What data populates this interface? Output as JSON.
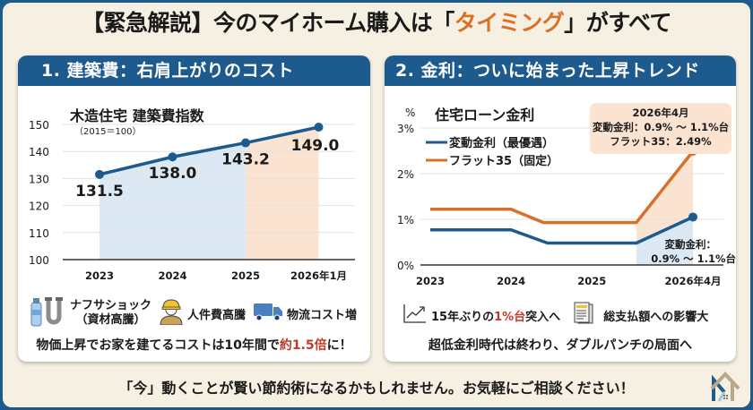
{
  "title": {
    "prefix": "【緊急解説】今のマイホーム購入は「",
    "accent": "タイミング",
    "suffix": "」がすべて"
  },
  "colors": {
    "brand_blue": "#1d5a8e",
    "accent_orange": "#d9702a",
    "highlight_red": "#c0392b",
    "background_cream": "#f5f0e2",
    "blue_fill": "#dce8f4",
    "orange_fill": "#fbe3d2"
  },
  "left_panel": {
    "header": "1. 建築費：右肩上がりのコスト",
    "factors": [
      {
        "icon": "water-bottle-and-pipe-icon",
        "label_line1": "ナフサショック",
        "label_line2": "（資材高騰）"
      },
      {
        "icon": "construction-worker-icon",
        "label_line1": "人件費高騰"
      },
      {
        "icon": "delivery-truck-icon",
        "label_line1": "物流コスト増"
      }
    ],
    "summary": {
      "prefix": "物価上昇でお家を建てるコストは10年間で",
      "highlight": "約1.5倍",
      "suffix": "に！"
    }
  },
  "right_panel": {
    "header": "2. 金利：ついに始まった上昇トレンド",
    "factors": [
      {
        "icon": "trend-up-icon",
        "prefix": "15年ぶりの",
        "highlight": "1%台",
        "suffix": "突入へ"
      },
      {
        "icon": "documents-icon",
        "label": "総支払額への影響大"
      }
    ],
    "summary": "超低金利時代は終わり、ダブルパンチの局面へ"
  },
  "footer": {
    "text": "「今」動くことが賢い節約術になるかもしれません。お気軽にご相談ください！",
    "logo_icon": "house-logo-icon"
  },
  "chart_data": [
    {
      "type": "line",
      "title": "木造住宅 建築費指数",
      "subtitle": "（2015＝100）",
      "categories": [
        "2023",
        "2024",
        "2025",
        "2026年1月"
      ],
      "series": [
        {
          "name": "建築費指数",
          "values": [
            131.5,
            138.0,
            143.2,
            149.0
          ]
        }
      ],
      "data_labels": [
        "131.5",
        "138.0",
        "143.2",
        "149.0"
      ],
      "ylim": [
        100,
        150
      ],
      "yticks": [
        100,
        110,
        120,
        130,
        140,
        150
      ],
      "xlabel": "",
      "ylabel": "",
      "grid": true,
      "shaded_regions": [
        {
          "from": "2023",
          "to": "2025",
          "color": "#dce8f4"
        },
        {
          "from": "2025",
          "to": "2026年1月",
          "color": "#fbe3d2"
        }
      ]
    },
    {
      "type": "line",
      "title": "住宅ローン金利",
      "ylabel": "%",
      "x_ticks": [
        "2023",
        "2024",
        "2025",
        "2026年4月"
      ],
      "x_range": [
        2023.0,
        2026.25
      ],
      "ylim": [
        0,
        3
      ],
      "yticks": [
        0,
        1,
        2,
        3
      ],
      "ytick_labels": [
        "0%",
        "1%",
        "2%",
        "3%"
      ],
      "grid": true,
      "legend_position": "top-left",
      "series": [
        {
          "name": "変動金利（最優遇）",
          "color": "#1d5a8e",
          "x": [
            2023.0,
            2024.0,
            2024.45,
            2025.55,
            2026.25
          ],
          "y": [
            0.77,
            0.77,
            0.48,
            0.48,
            1.05
          ]
        },
        {
          "name": "フラット35（固定）",
          "color": "#d9702a",
          "x": [
            2023.0,
            2024.0,
            2024.4,
            2025.55,
            2026.25
          ],
          "y": [
            1.22,
            1.22,
            0.93,
            0.93,
            2.49
          ]
        }
      ],
      "annotations": [
        {
          "lines": [
            "2026年4月",
            "変動金利：0.9% ～ 1.1%台",
            "フラット35：2.49%"
          ],
          "position": "top-right"
        },
        {
          "lines": [
            "変動金利：",
            "0.9% ～ 1.1%台"
          ],
          "position": "bottom-right"
        }
      ]
    }
  ]
}
